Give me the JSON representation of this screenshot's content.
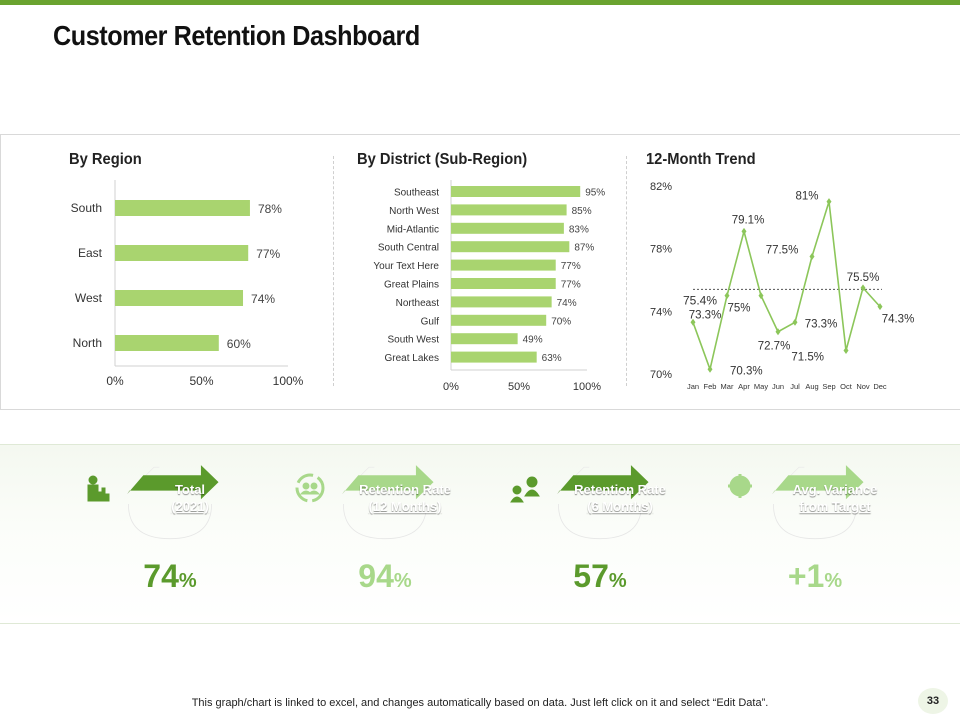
{
  "page": {
    "title": "Customer Retention Dashboard",
    "footer": "This graph/chart is linked to excel, and changes automatically based on data. Just left click on it and select “Edit Data”.",
    "page_number": "33"
  },
  "colors": {
    "accent": "#6aa32f",
    "light_bar": "#a9d46f",
    "dark_green": "#5b9a2c",
    "light_green": "#a8d88a"
  },
  "chart_data": [
    {
      "type": "bar",
      "orientation": "horizontal",
      "title": "By Region",
      "categories": [
        "South",
        "East",
        "West",
        "North"
      ],
      "values": [
        78,
        77,
        74,
        60
      ],
      "value_labels": [
        "78%",
        "77%",
        "74%",
        "60%"
      ],
      "xlim": [
        0,
        100
      ],
      "x_ticks": [
        "0%",
        "50%",
        "100%"
      ]
    },
    {
      "type": "bar",
      "orientation": "horizontal",
      "title": "By District (Sub-Region)",
      "categories": [
        "Southeast",
        "North West",
        "Mid-Atlantic",
        "South Central",
        "Your Text Here",
        "Great Plains",
        "Northeast",
        "Gulf",
        "South West",
        "Great Lakes"
      ],
      "values": [
        95,
        85,
        83,
        87,
        77,
        77,
        74,
        70,
        49,
        63
      ],
      "value_labels": [
        "95%",
        "85%",
        "83%",
        "87%",
        "77%",
        "77%",
        "74%",
        "70%",
        "49%",
        "63%"
      ],
      "xlim": [
        0,
        100
      ],
      "x_ticks": [
        "0%",
        "50%",
        "100%"
      ]
    },
    {
      "type": "line",
      "title": "12-Month Trend",
      "x": [
        "Jan",
        "Feb",
        "Mar",
        "Apr",
        "May",
        "Jun",
        "Jul",
        "Aug",
        "Sep",
        "Oct",
        "Nov",
        "Dec"
      ],
      "values": [
        73.3,
        70.3,
        75.0,
        79.1,
        75.0,
        72.7,
        73.3,
        77.5,
        81.0,
        71.5,
        75.5,
        74.3
      ],
      "value_labels": [
        "73.3%",
        "70.3%",
        "75%",
        "79.1%",
        "",
        "72.7%",
        "73.3%",
        "77.5%",
        "81%",
        "71.5%",
        "75.5%",
        "74.3%"
      ],
      "reference_line": 75.4,
      "reference_label": "75.4%",
      "ylim": [
        70,
        82
      ],
      "y_ticks": [
        "70%",
        "74%",
        "78%",
        "82%"
      ]
    }
  ],
  "kpis": [
    {
      "label_lines": [
        "Total",
        "(2021)"
      ],
      "value": "74",
      "unit": "%",
      "icon": "person-dollar-chart-icon",
      "style": "dark"
    },
    {
      "label_lines": [
        "Retention Rate",
        "(12 Months)"
      ],
      "value": "94",
      "unit": "%",
      "icon": "people-cycle-icon",
      "style": "light"
    },
    {
      "label_lines": [
        "Retention Rate",
        "(6 Months)"
      ],
      "value": "57",
      "unit": "%",
      "icon": "users-lightbulb-icon",
      "style": "dark"
    },
    {
      "label_lines": [
        "Avg. Variance",
        "from Target"
      ],
      "value": "+1",
      "unit": "%",
      "icon": "dollar-gear-icon",
      "style": "light"
    }
  ]
}
